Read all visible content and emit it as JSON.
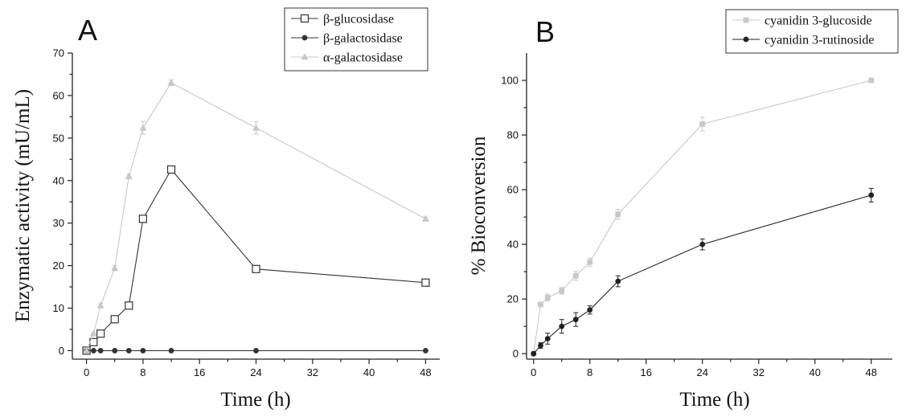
{
  "chart_data": [
    {
      "type": "line",
      "panel_label": "A",
      "xlabel": "Time (h)",
      "ylabel": "Enzymatic activity (mU/mL)",
      "xlim": [
        -2,
        50
      ],
      "ylim": [
        -2,
        70
      ],
      "x_ticks": [
        0,
        8,
        16,
        24,
        32,
        40,
        48
      ],
      "y_ticks": [
        0,
        10,
        20,
        30,
        40,
        50,
        60,
        70
      ],
      "legend_position": "top-right",
      "grid": false,
      "series": [
        {
          "name": "β-glucosidase",
          "marker": "open-square",
          "color": "#333333",
          "x": [
            0,
            1,
            2,
            4,
            6,
            8,
            12,
            24,
            48
          ],
          "y": [
            0,
            2,
            4,
            7.4,
            10.6,
            31,
            42.6,
            19.2,
            16
          ],
          "err": [
            0,
            0.3,
            0.3,
            0.4,
            0.5,
            0.6,
            0.7,
            0.5,
            0.4
          ]
        },
        {
          "name": "β-galactosidase",
          "marker": "filled-circle",
          "color": "#333333",
          "x": [
            0,
            1,
            2,
            4,
            6,
            8,
            12,
            24,
            48
          ],
          "y": [
            0,
            0,
            0,
            0,
            0,
            0,
            0,
            0,
            0
          ],
          "err": [
            0,
            0,
            0,
            0,
            0,
            0,
            0,
            0,
            0
          ]
        },
        {
          "name": "α-galactosidase",
          "marker": "filled-triangle",
          "color": "#c8c8c8",
          "x": [
            0,
            1,
            2,
            4,
            6,
            8,
            12,
            24,
            48
          ],
          "y": [
            0,
            4,
            10.6,
            19.4,
            41,
            52.4,
            63,
            52.4,
            31
          ],
          "err": [
            0,
            0.3,
            0.5,
            0.6,
            0.5,
            1.5,
            0.7,
            1.5,
            0.4
          ]
        }
      ]
    },
    {
      "type": "line",
      "panel_label": "B",
      "xlabel": "Time (h)",
      "ylabel": "% Bioconversion",
      "xlim": [
        -1,
        51
      ],
      "ylim": [
        -2,
        110
      ],
      "x_ticks": [
        0,
        8,
        16,
        24,
        32,
        40,
        48
      ],
      "y_ticks": [
        0,
        20,
        40,
        60,
        80,
        100
      ],
      "legend_position": "top-right",
      "grid": false,
      "series": [
        {
          "name": "cyanidin 3-glucoside",
          "marker": "filled-square",
          "color": "#c8c8c8",
          "x": [
            0,
            1,
            2,
            4,
            6,
            8,
            12,
            24,
            48
          ],
          "y": [
            0,
            18,
            20.5,
            23,
            28.5,
            33.5,
            51,
            84,
            100
          ],
          "err": [
            0,
            0.8,
            1.3,
            1.2,
            1.6,
            1.5,
            1.8,
            2.5,
            0.4
          ]
        },
        {
          "name": "cyanidin 3-rutinoside",
          "marker": "filled-circle",
          "color": "#222222",
          "x": [
            0,
            1,
            2,
            4,
            6,
            8,
            12,
            24,
            48
          ],
          "y": [
            0,
            3,
            5.5,
            10,
            12.5,
            16,
            26.5,
            40,
            58
          ],
          "err": [
            0,
            1,
            2,
            2.5,
            2.5,
            1.5,
            2,
            2,
            2.5
          ]
        }
      ]
    }
  ]
}
